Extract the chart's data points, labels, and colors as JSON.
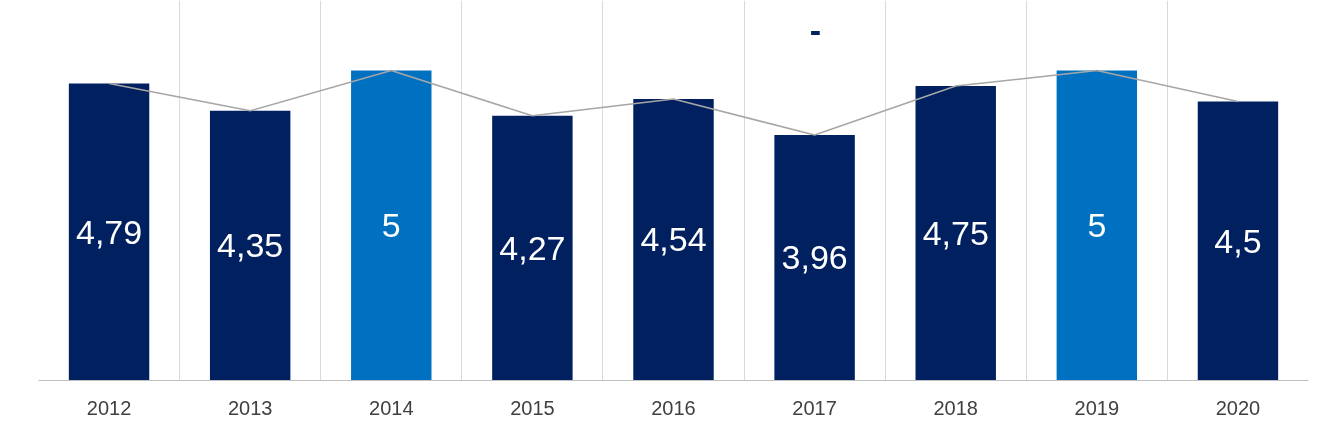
{
  "chart_data": {
    "type": "bar",
    "categories": [
      "2012",
      "2013",
      "2014",
      "2015",
      "2016",
      "2017",
      "2018",
      "2019",
      "2020"
    ],
    "series": [
      {
        "colors": [
          "#002060",
          "#002060",
          "#0070c0",
          "#002060",
          "#002060",
          "#002060",
          "#002060",
          "#0070c0",
          "#002060"
        ],
        "values": [
          4.79,
          4.35,
          5,
          4.27,
          4.54,
          3.96,
          4.75,
          5,
          4.5
        ],
        "value_labels": [
          "4,79",
          "4,35",
          "5",
          "4,27",
          "4,54",
          "3,96",
          "4,75",
          "5",
          "4,5"
        ]
      },
      {
        "type": "line",
        "color": "#a6a6a6",
        "values": [
          4.79,
          4.35,
          5,
          4.27,
          4.54,
          3.96,
          4.75,
          5,
          4.5
        ]
      }
    ],
    "ylim": [
      0,
      6.13
    ],
    "tick_labels": "x",
    "grid": "x",
    "annotations": [
      "-"
    ]
  }
}
